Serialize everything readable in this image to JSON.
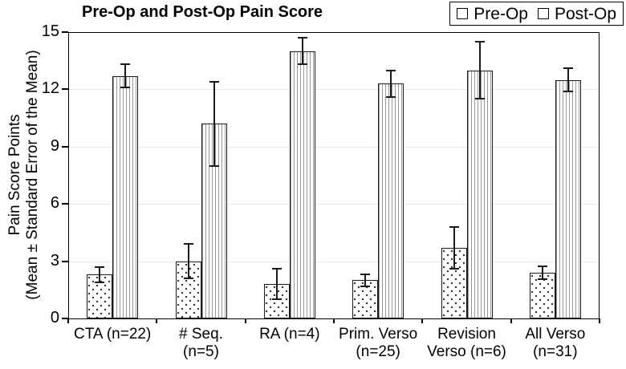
{
  "chart_data": {
    "type": "bar",
    "title": "Pre-Op and Post-Op Pain Score",
    "ylabel_line1": "Pain Score Points",
    "ylabel_line2": "(Mean ± Standard Error of the Mean)",
    "ylim": [
      0,
      15
    ],
    "yticks": [
      0,
      3,
      6,
      9,
      12,
      15
    ],
    "grid": true,
    "legend_position": "top-right",
    "categories": [
      "CTA (n=22)",
      "# Seq. (n=5)",
      "RA (n=4)",
      "Prim. Verso (n=25)",
      "Revision Verso (n=6)",
      "All Verso (n=31)"
    ],
    "category_label_lines": [
      [
        "CTA (n=22)"
      ],
      [
        "# Seq.",
        "(n=5)"
      ],
      [
        "RA (n=4)"
      ],
      [
        "Prim. Verso",
        "(n=25)"
      ],
      [
        "Revision",
        "Verso (n=6)"
      ],
      [
        "All Verso",
        "(n=31)"
      ]
    ],
    "series": [
      {
        "name": "Pre-Op",
        "pattern": "dots",
        "values": [
          2.3,
          3.0,
          1.8,
          2.0,
          3.7,
          2.4
        ],
        "errors": [
          0.4,
          0.9,
          0.8,
          0.3,
          1.1,
          0.35
        ]
      },
      {
        "name": "Post-Op",
        "pattern": "vlines",
        "values": [
          12.7,
          10.2,
          14.0,
          12.3,
          13.0,
          12.5
        ],
        "errors": [
          0.6,
          2.2,
          0.7,
          0.7,
          1.5,
          0.6
        ]
      }
    ],
    "colors": {
      "background": "#ffffff",
      "bar_fill": "#ffffff",
      "bar_outline": "#1a1a1a",
      "gridline": "#e8e8e8",
      "axis": "#000000",
      "text": "#000000",
      "dot_pattern": "#2b2b2b",
      "hatch_line": "#9a9a9a"
    }
  }
}
